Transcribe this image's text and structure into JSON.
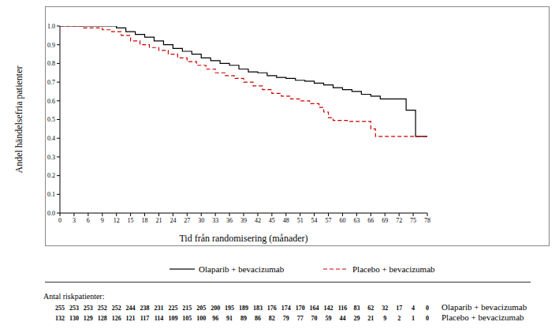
{
  "chart_data": {
    "type": "line",
    "y_label": "Andel händelsefria patienter",
    "x_label": "Tid från randomisering (månader)",
    "xlim": [
      0,
      78
    ],
    "xticks": [
      0,
      3,
      6,
      9,
      12,
      15,
      18,
      21,
      24,
      27,
      30,
      33,
      36,
      39,
      42,
      45,
      48,
      51,
      54,
      57,
      60,
      63,
      66,
      69,
      72,
      75,
      78
    ],
    "ylim": [
      0,
      1
    ],
    "yticks": [
      {
        "value": 0,
        "label": "0.0"
      },
      0.1,
      0.2,
      0.3,
      0.4,
      0.5,
      0.6,
      0.7,
      0.8,
      0.9,
      {
        "value": 1,
        "label": "1.0"
      }
    ],
    "grid": false,
    "legend": "bottom",
    "series": [
      {
        "name": "Olaparib + bevacizumab",
        "color": "#000000",
        "line_style": "solid",
        "x": [
          0,
          12,
          14,
          16,
          18,
          20,
          22,
          24,
          26,
          28,
          30,
          32,
          34,
          36,
          38,
          40,
          42,
          44,
          46,
          48,
          50,
          52,
          54,
          56,
          58,
          60,
          62,
          64,
          66,
          68,
          72,
          73.5,
          75.5,
          78
        ],
        "values": [
          1.0,
          0.99,
          0.97,
          0.955,
          0.94,
          0.92,
          0.9,
          0.88,
          0.865,
          0.85,
          0.83,
          0.815,
          0.8,
          0.79,
          0.77,
          0.755,
          0.75,
          0.735,
          0.725,
          0.72,
          0.71,
          0.705,
          0.695,
          0.685,
          0.67,
          0.66,
          0.65,
          0.635,
          0.625,
          0.61,
          0.61,
          0.55,
          0.41,
          0.41
        ]
      },
      {
        "name": "Placebo + bevacizumab",
        "color": "#cc0000",
        "line_style": "dashed",
        "x": [
          0,
          5,
          9,
          11,
          13,
          15,
          17,
          19,
          21,
          23,
          25,
          27,
          29,
          31,
          33,
          35,
          37,
          39,
          41,
          43,
          45,
          47,
          49,
          51,
          53,
          55,
          56,
          57,
          58,
          61,
          66,
          67,
          78
        ],
        "values": [
          1.0,
          0.99,
          0.98,
          0.97,
          0.95,
          0.92,
          0.9,
          0.885,
          0.87,
          0.85,
          0.83,
          0.81,
          0.79,
          0.77,
          0.75,
          0.735,
          0.72,
          0.7,
          0.68,
          0.66,
          0.64,
          0.625,
          0.61,
          0.6,
          0.585,
          0.565,
          0.54,
          0.51,
          0.495,
          0.49,
          0.45,
          0.41,
          0.41
        ]
      }
    ],
    "at_risk": {
      "title": "Antal riskpatienter:",
      "x": [
        0,
        3,
        6,
        9,
        12,
        15,
        18,
        21,
        24,
        27,
        30,
        33,
        36,
        39,
        42,
        45,
        48,
        51,
        54,
        57,
        60,
        63,
        66,
        69,
        72,
        75,
        78
      ],
      "rows": [
        {
          "name": "Olaparib + bevacizumab",
          "values": [
            255,
            253,
            253,
            252,
            252,
            244,
            238,
            231,
            225,
            215,
            205,
            200,
            195,
            189,
            183,
            176,
            174,
            170,
            164,
            142,
            116,
            83,
            62,
            32,
            17,
            4,
            0
          ]
        },
        {
          "name": "Placebo + bevacizumab",
          "values": [
            132,
            130,
            129,
            128,
            126,
            121,
            117,
            114,
            109,
            105,
            100,
            96,
            91,
            89,
            86,
            82,
            79,
            77,
            70,
            59,
            44,
            29,
            21,
            9,
            2,
            1,
            0
          ]
        }
      ]
    }
  }
}
